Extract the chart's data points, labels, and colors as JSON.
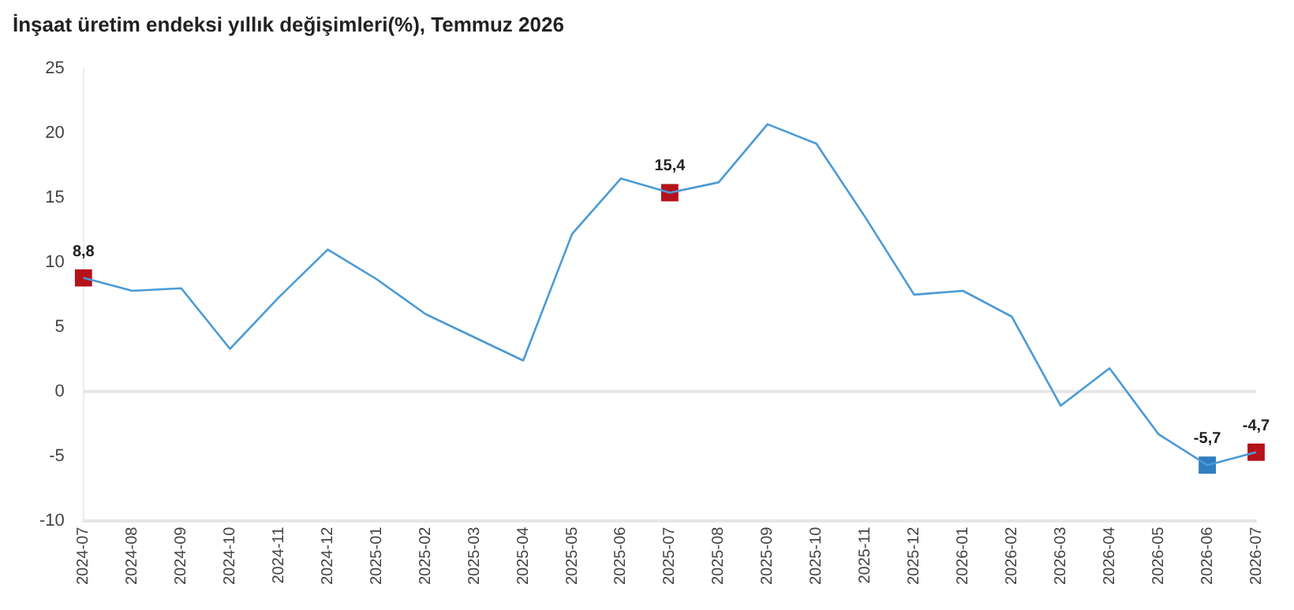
{
  "chart_data": {
    "type": "line",
    "title": "İnşaat üretim endeksi yıllık değişimleri(%), Temmuz 2026",
    "categories": [
      "2024-07",
      "2024-08",
      "2024-09",
      "2024-10",
      "2024-11",
      "2024-12",
      "2025-01",
      "2025-02",
      "2025-03",
      "2025-04",
      "2025-05",
      "2025-06",
      "2025-07",
      "2025-08",
      "2025-09",
      "2025-10",
      "2025-11",
      "2025-12",
      "2026-01",
      "2026-02",
      "2026-03",
      "2026-04",
      "2026-05",
      "2026-06",
      "2026-07"
    ],
    "series": [
      {
        "color": "#4a9ad6",
        "marker": "none",
        "values": [
          8.8,
          7.8,
          8.0,
          3.3,
          7.3,
          11.0,
          8.7,
          6.0,
          4.2,
          2.4,
          12.2,
          16.5,
          15.4,
          16.2,
          20.7,
          19.2,
          13.5,
          7.5,
          7.8,
          5.8,
          -1.1,
          1.8,
          -3.3,
          -5.7,
          -4.7
        ]
      },
      {
        "type": "scatter",
        "marker": "square",
        "values": [
          8.8,
          null,
          null,
          null,
          null,
          null,
          null,
          null,
          null,
          null,
          null,
          null,
          15.4,
          null,
          null,
          null,
          null,
          null,
          null,
          null,
          null,
          null,
          null,
          -5.7,
          -4.7
        ],
        "colors": [
          "#b5121b",
          null,
          null,
          null,
          null,
          null,
          null,
          null,
          null,
          null,
          null,
          null,
          "#b5121b",
          null,
          null,
          null,
          null,
          null,
          null,
          null,
          null,
          null,
          null,
          "#2f7ec1",
          "#b5121b"
        ],
        "value_labels": [
          "8,8",
          null,
          null,
          null,
          null,
          null,
          null,
          null,
          null,
          null,
          null,
          null,
          "15,4",
          null,
          null,
          null,
          null,
          null,
          null,
          null,
          null,
          null,
          null,
          "-5,7",
          "-4,7"
        ]
      }
    ],
    "ylim": [
      -10,
      25
    ],
    "yticks": [
      -10,
      -5,
      0,
      5,
      10,
      15,
      20,
      25
    ],
    "grid": false,
    "legend": false,
    "ref_lines": [
      {
        "axis": "y",
        "value": 0,
        "color": "#e6e6e6"
      }
    ]
  }
}
